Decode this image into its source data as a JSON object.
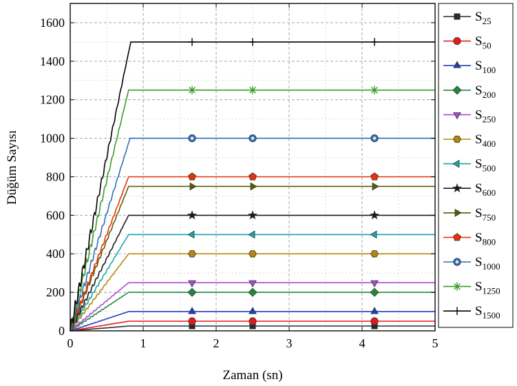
{
  "chart_data": {
    "type": "line",
    "title": "",
    "xlabel": "Zaman (sn)",
    "ylabel": "Düğüm Sayısı",
    "xlim": [
      0,
      5
    ],
    "ylim": [
      0,
      1700
    ],
    "xticks": [
      0,
      1,
      2,
      3,
      4,
      5
    ],
    "yticks": [
      0,
      200,
      400,
      600,
      800,
      1000,
      1200,
      1400,
      1600
    ],
    "xtick_labels": [
      "0",
      "1",
      "2",
      "3",
      "4",
      "5"
    ],
    "ytick_labels": [
      "0",
      "200",
      "400",
      "600",
      "800",
      "1000",
      "1200",
      "1400",
      "1600"
    ],
    "grid": true,
    "legend_position": "right",
    "marker_x": [
      1.67,
      2.5,
      4.17
    ],
    "series": [
      {
        "base": "S",
        "sub": "25",
        "plateau": 25,
        "ramp_end": 0.8,
        "color": "#2b2b2b",
        "marker": "square"
      },
      {
        "base": "S",
        "sub": "50",
        "plateau": 50,
        "ramp_end": 0.8,
        "color": "#e41a1c",
        "marker": "circle"
      },
      {
        "base": "S",
        "sub": "100",
        "plateau": 100,
        "ramp_end": 0.8,
        "color": "#1f3fbf",
        "marker": "triangle-up"
      },
      {
        "base": "S",
        "sub": "200",
        "plateau": 200,
        "ramp_end": 0.8,
        "color": "#1e8a3c",
        "marker": "diamond"
      },
      {
        "base": "S",
        "sub": "250",
        "plateau": 250,
        "ramp_end": 0.8,
        "color": "#a64cd6",
        "marker": "triangle-down"
      },
      {
        "base": "S",
        "sub": "400",
        "plateau": 400,
        "ramp_end": 0.8,
        "color": "#b8860b",
        "marker": "hexagon"
      },
      {
        "base": "S",
        "sub": "500",
        "plateau": 500,
        "ramp_end": 0.8,
        "color": "#17a8a8",
        "marker": "triangle-left"
      },
      {
        "base": "S",
        "sub": "600",
        "plateau": 600,
        "ramp_end": 0.8,
        "color": "#1a1a1a",
        "marker": "star"
      },
      {
        "base": "S",
        "sub": "750",
        "plateau": 750,
        "ramp_end": 0.8,
        "color": "#5c5c00",
        "marker": "triangle-right"
      },
      {
        "base": "S",
        "sub": "800",
        "plateau": 800,
        "ramp_end": 0.8,
        "color": "#e8300a",
        "marker": "pentagon"
      },
      {
        "base": "S",
        "sub": "1000",
        "plateau": 1000,
        "ramp_end": 0.82,
        "color": "#2e6fb5",
        "marker": "circle-dot"
      },
      {
        "base": "S",
        "sub": "1250",
        "plateau": 1250,
        "ramp_end": 0.8,
        "color": "#3a9a2a",
        "marker": "asterisk"
      },
      {
        "base": "S",
        "sub": "1500",
        "plateau": 1500,
        "ramp_end": 0.83,
        "color": "#000000",
        "marker": "plus"
      }
    ]
  }
}
